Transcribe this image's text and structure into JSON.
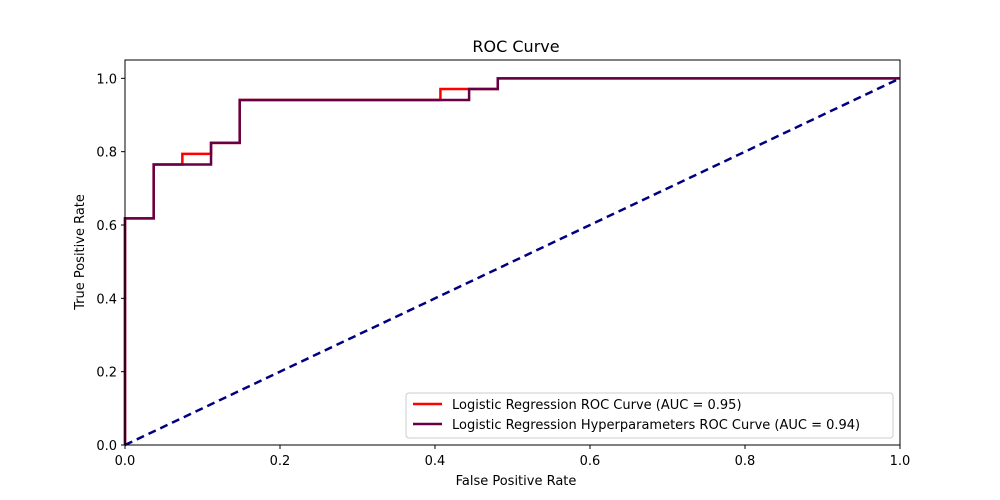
{
  "chart_data": {
    "type": "line",
    "title": "ROC Curve",
    "xlabel": "False Positive Rate",
    "ylabel": "True Positive Rate",
    "xlim": [
      0.0,
      1.0
    ],
    "ylim": [
      0.0,
      1.05
    ],
    "x_ticks": [
      "0.0",
      "0.2",
      "0.4",
      "0.6",
      "0.8",
      "1.0"
    ],
    "y_ticks": [
      "0.0",
      "0.2",
      "0.4",
      "0.6",
      "0.8",
      "1.0"
    ],
    "grid": false,
    "legend_position": "lower right",
    "series": [
      {
        "name": "Logistic Regression ROC Curve (AUC = 0.95)",
        "color": "#ff0000",
        "style": "solid",
        "x": [
          0.0,
          0.0,
          0.0,
          0.037,
          0.037,
          0.074,
          0.074,
          0.111,
          0.111,
          0.148,
          0.148,
          0.407,
          0.407,
          0.444,
          0.444,
          0.481,
          0.481,
          1.0
        ],
        "y": [
          0.0,
          0.0,
          0.618,
          0.618,
          0.765,
          0.765,
          0.794,
          0.794,
          0.824,
          0.824,
          0.941,
          0.941,
          0.971,
          0.971,
          0.971,
          0.971,
          1.0,
          1.0
        ]
      },
      {
        "name": "Logistic Regression Hyperparameters ROC Curve (AUC = 0.94)",
        "color": "#660044",
        "style": "solid",
        "x": [
          0.0,
          0.0,
          0.037,
          0.037,
          0.111,
          0.111,
          0.148,
          0.148,
          0.444,
          0.444,
          0.481,
          0.481,
          1.0
        ],
        "y": [
          0.0,
          0.618,
          0.618,
          0.765,
          0.765,
          0.824,
          0.824,
          0.941,
          0.941,
          0.971,
          0.971,
          1.0,
          1.0
        ]
      },
      {
        "color": "#000080",
        "style": "dashed",
        "x": [
          0.0,
          1.0
        ],
        "y": [
          0.0,
          1.0
        ]
      }
    ]
  }
}
